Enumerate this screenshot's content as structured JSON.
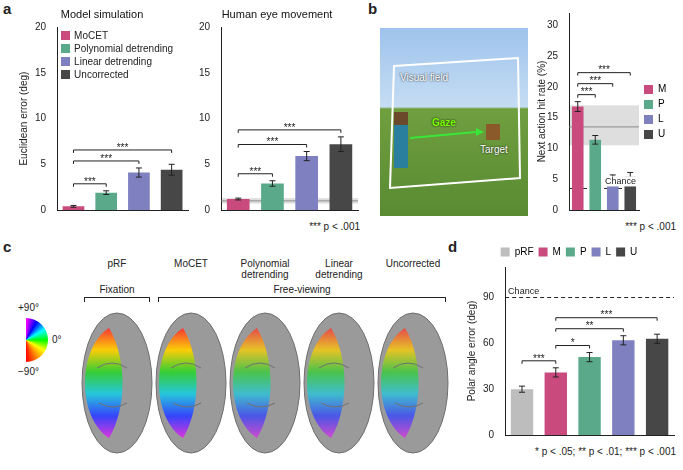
{
  "panel_letters": [
    "a",
    "b",
    "c",
    "d"
  ],
  "chart_data": [
    {
      "type": "bar",
      "title": "Model simulation",
      "y_label": "Euclidean error (deg)",
      "categories": [
        "MoCET",
        "Polynomial detrending",
        "Linear detrending",
        "Uncorrected"
      ],
      "values": [
        0.4,
        1.9,
        4.1,
        4.4
      ],
      "errors": [
        0.1,
        0.2,
        0.5,
        0.6
      ],
      "colors": [
        "#c94b7d",
        "#5aa98b",
        "#7e80c0",
        "#474747"
      ],
      "ylim": [
        0,
        20
      ],
      "yticks": [
        0,
        5,
        10,
        15,
        20
      ],
      "grid": false,
      "legend": "top-left",
      "tick_labels": "y",
      "significance": [
        {
          "from": "MoCET",
          "to": "Polynomial detrending",
          "label": "***"
        },
        {
          "from": "MoCET",
          "to": "Linear detrending",
          "label": "***"
        },
        {
          "from": "MoCET",
          "to": "Uncorrected",
          "label": "***"
        }
      ]
    },
    {
      "type": "bar",
      "title": "Human eye movement",
      "categories": [
        "MoCET",
        "Polynomial detrending",
        "Linear detrending",
        "Uncorrected"
      ],
      "values": [
        1.2,
        2.9,
        5.9,
        7.2
      ],
      "errors": [
        0.1,
        0.3,
        0.5,
        0.8
      ],
      "colors": [
        "#c94b7d",
        "#5aa98b",
        "#7e80c0",
        "#474747"
      ],
      "ylim": [
        0,
        20
      ],
      "yticks": [
        0,
        5,
        10,
        15,
        20
      ],
      "grid": false,
      "tick_labels": "y",
      "reference_band": [
        0.7,
        1.3
      ],
      "reference_line": 1.0,
      "significance": [
        {
          "from": "MoCET",
          "to": "Polynomial detrending",
          "label": "***"
        },
        {
          "from": "MoCET",
          "to": "Linear detrending",
          "label": "***"
        },
        {
          "from": "MoCET",
          "to": "Uncorrected",
          "label": "***"
        }
      ],
      "note": "*** p < .001"
    },
    {
      "type": "bar",
      "y_label": "Next action hit rate (%)",
      "categories": [
        "M",
        "P",
        "L",
        "U"
      ],
      "values": [
        16.8,
        11.4,
        5.2,
        5.4
      ],
      "errors": [
        0.8,
        0.7,
        0.5,
        0.7
      ],
      "colors": [
        "#c94b7d",
        "#5aa98b",
        "#7e80c0",
        "#474747"
      ],
      "ylim": [
        0,
        32
      ],
      "yticks": [
        0,
        5,
        10,
        15,
        20,
        25,
        30
      ],
      "grid": false,
      "legend": "right",
      "tick_labels": "y",
      "reference_band": [
        10.5,
        17.0
      ],
      "reference_line": 13.5,
      "chance": 3.5,
      "chance_label": "Chance",
      "significance": [
        {
          "from": "M",
          "to": "P",
          "label": "***"
        },
        {
          "from": "M",
          "to": "L",
          "label": "***"
        },
        {
          "from": "M",
          "to": "U",
          "label": "***"
        }
      ],
      "note": "*** p < .001"
    },
    {
      "type": "bar",
      "y_label": "Polar angle error (deg)",
      "categories": [
        "pRF",
        "M",
        "P",
        "L",
        "U"
      ],
      "values": [
        30,
        41,
        51,
        62,
        63
      ],
      "errors": [
        2,
        3,
        3,
        3,
        3
      ],
      "colors": [
        "#bdbdbd",
        "#c94b7d",
        "#5aa98b",
        "#7e80c0",
        "#474747"
      ],
      "ylim": [
        0,
        110
      ],
      "yticks": [
        0,
        30,
        60,
        90
      ],
      "grid": false,
      "legend": "top",
      "tick_labels": "y",
      "chance": 90,
      "chance_label": "Chance",
      "significance": [
        {
          "from": "pRF",
          "to": "M",
          "label": "***"
        },
        {
          "from": "M",
          "to": "P",
          "label": "*"
        },
        {
          "from": "M",
          "to": "L",
          "label": "**"
        },
        {
          "from": "M",
          "to": "U",
          "label": "***"
        }
      ],
      "note": "* p < .05; ** p < .01; *** p < .001"
    }
  ],
  "scene": {
    "visual_field": "Visual field",
    "gaze": "Gaze",
    "target": "Target"
  },
  "brain_maps": {
    "colorwheel": [
      "+90°",
      "0°",
      "−90°"
    ],
    "maps": [
      "pRF",
      "MoCET",
      "Polynomial detrending",
      "Linear detrending",
      "Uncorrected"
    ],
    "groups": [
      {
        "label": "Fixation",
        "maps": 1
      },
      {
        "label": "Free-viewing",
        "maps": 4
      }
    ]
  }
}
